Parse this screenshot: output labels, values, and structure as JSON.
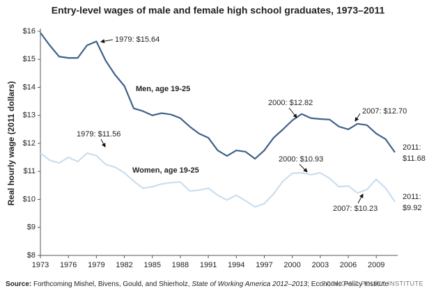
{
  "chart_data": {
    "type": "line",
    "title": "Entry-level wages of male and female high school graduates, 1973–2011",
    "y_label": "Real hourly wage (2011 dollars)",
    "x": [
      1973,
      1974,
      1975,
      1976,
      1977,
      1978,
      1979,
      1980,
      1981,
      1982,
      1983,
      1984,
      1985,
      1986,
      1987,
      1988,
      1989,
      1990,
      1991,
      1992,
      1993,
      1994,
      1995,
      1996,
      1997,
      1998,
      1999,
      2000,
      2001,
      2002,
      2003,
      2004,
      2005,
      2006,
      2007,
      2008,
      2009,
      2010,
      2011
    ],
    "series": [
      {
        "name": "Men, age 19-25",
        "color": "#3e6189",
        "values": [
          15.95,
          15.5,
          15.1,
          15.05,
          15.05,
          15.5,
          15.64,
          14.95,
          14.45,
          14.05,
          13.25,
          13.15,
          13.0,
          13.08,
          13.03,
          12.9,
          12.6,
          12.35,
          12.2,
          11.75,
          11.55,
          11.75,
          11.7,
          11.45,
          11.75,
          12.2,
          12.5,
          12.82,
          13.05,
          12.9,
          12.87,
          12.85,
          12.6,
          12.5,
          12.7,
          12.65,
          12.35,
          12.15,
          11.68
        ]
      },
      {
        "name": "Women, age 19-25",
        "color": "#cbdeee",
        "values": [
          11.65,
          11.4,
          11.3,
          11.5,
          11.35,
          11.65,
          11.56,
          11.25,
          11.15,
          10.95,
          10.65,
          10.4,
          10.45,
          10.55,
          10.6,
          10.62,
          10.3,
          10.33,
          10.4,
          10.15,
          9.98,
          10.15,
          9.95,
          9.73,
          9.85,
          10.2,
          10.65,
          10.93,
          10.95,
          10.88,
          10.95,
          10.75,
          10.45,
          10.48,
          10.23,
          10.35,
          10.72,
          10.4,
          9.92
        ]
      }
    ],
    "xlim": [
      1973,
      2011
    ],
    "xticks": [
      1973,
      1976,
      1979,
      1982,
      1985,
      1988,
      1991,
      1994,
      1997,
      2000,
      2003,
      2006,
      2009
    ],
    "ylim": [
      8,
      16
    ],
    "yticks": [
      {
        "value": 8,
        "label": "$8"
      },
      {
        "value": 9,
        "label": "$9"
      },
      {
        "value": 10,
        "label": "$10"
      },
      {
        "value": 11,
        "label": "$11"
      },
      {
        "value": 12,
        "label": "$12"
      },
      {
        "value": 13,
        "label": "$13"
      },
      {
        "value": 14,
        "label": "$14"
      },
      {
        "value": 15,
        "label": "$15"
      },
      {
        "value": 16,
        "label": "$16"
      }
    ],
    "annotations": [
      [
        "1979: $15.64"
      ],
      [
        "2000: $12.82"
      ],
      [
        "2007: $12.70"
      ],
      [
        "2011:",
        "$11.68"
      ],
      [
        "1979: $11.56"
      ],
      [
        "2000: $10.93"
      ],
      [
        "2007: $10.23"
      ],
      [
        "2011:",
        "$9.92"
      ]
    ],
    "source": {
      "label": "Source:",
      "text": "Forthcoming Mishel, Bivens, Gould, and Shierholz, ",
      "italic": "State of Working America 2012–2013",
      "tail": "; Economic Policy Institute"
    },
    "logo": "ECONOMIC POLICY INSTITUTE"
  }
}
